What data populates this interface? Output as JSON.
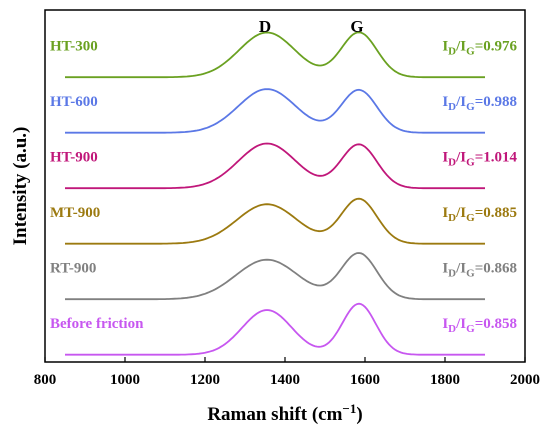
{
  "chart_data": {
    "type": "line",
    "xlabel": "Raman shift (cm",
    "xlabel_sup": "−1",
    "xlabel_end": ")",
    "ylabel": "Intensity (a.u.)",
    "xlim": [
      800,
      2000
    ],
    "xticks": [
      800,
      1000,
      1200,
      1400,
      1600,
      1800,
      2000
    ],
    "yticks_shown": false,
    "peak_labels": [
      {
        "text": "D",
        "x": 1350
      },
      {
        "text": "G",
        "x": 1580
      }
    ],
    "series": [
      {
        "name": "HT-300",
        "color": "#6aa121",
        "ratio_value": "=0.976",
        "d_amp": 0.86,
        "g_amp": 0.86,
        "d_width": 70,
        "g_width": 45,
        "baseline": 0.005
      },
      {
        "name": "HT-600",
        "color": "#5b78e6",
        "ratio_value": "=0.988",
        "d_amp": 0.84,
        "g_amp": 0.82,
        "d_width": 72,
        "g_width": 45,
        "baseline": 0.005
      },
      {
        "name": "HT-900",
        "color": "#c0177a",
        "ratio_value": "=1.014",
        "d_amp": 0.86,
        "g_amp": 0.84,
        "d_width": 72,
        "g_width": 45,
        "baseline": 0.005
      },
      {
        "name": "MT-900",
        "color": "#9c7a10",
        "ratio_value": "=0.885",
        "d_amp": 0.76,
        "g_amp": 0.86,
        "d_width": 75,
        "g_width": 45,
        "baseline": 0.005
      },
      {
        "name": "RT-900",
        "color": "#808080",
        "ratio_value": "=0.868",
        "d_amp": 0.76,
        "g_amp": 0.88,
        "d_width": 78,
        "g_width": 45,
        "baseline": 0.005
      },
      {
        "name": "Before friction",
        "color": "#c757f0",
        "ratio_value": "=0.858",
        "d_amp": 0.86,
        "g_amp": 0.98,
        "d_width": 62,
        "g_width": 42,
        "baseline": 0.005
      }
    ],
    "ratio_prefix": "I",
    "ratio_sub_d": "D",
    "ratio_slash": "/I",
    "ratio_sub_g": "G",
    "grid": false,
    "legend": "none"
  }
}
